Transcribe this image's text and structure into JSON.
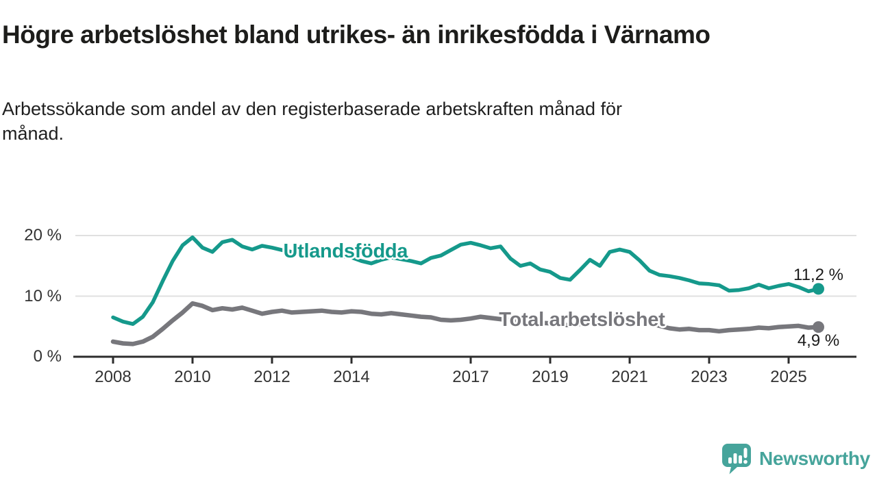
{
  "page": {
    "title": "Högre arbetslöshet bland utrikes- än inrikesfödda i Värnamo",
    "subtitle": "Arbetssökande som andel av den registerbaserade arbetskraften månad för månad."
  },
  "colors": {
    "foreign_born_line": "#15998b",
    "total_line": "#77777c",
    "axis": "#2d2d2d",
    "grid": "#e0e0e0",
    "tick_text": "#333333",
    "title_text": "#1d1d1b",
    "value_text": "#1b1b1b",
    "brand_teal": "#46a49b"
  },
  "chart_data": {
    "type": "line",
    "title": "Högre arbetslöshet bland utrikes- än inrikesfödda i Värnamo",
    "subtitle": "Arbetssökande som andel av den registerbaserade arbetskraften månad för månad.",
    "xlabel": "",
    "ylabel": "",
    "ylim": [
      0,
      22
    ],
    "x_range": [
      2008,
      2025.75
    ],
    "grid": "horizontal",
    "legend_position": "inline-labels",
    "y_ticks": [
      {
        "value": 0,
        "label": "0 %"
      },
      {
        "value": 10,
        "label": "10 %"
      },
      {
        "value": 20,
        "label": "20 %"
      }
    ],
    "x_ticks": [
      {
        "value": 2008,
        "label": "2008"
      },
      {
        "value": 2010,
        "label": "2010"
      },
      {
        "value": 2012,
        "label": "2012"
      },
      {
        "value": 2014,
        "label": "2014"
      },
      {
        "value": 2017,
        "label": "2017"
      },
      {
        "value": 2019,
        "label": "2019"
      },
      {
        "value": 2021,
        "label": "2021"
      },
      {
        "value": 2023,
        "label": "2023"
      },
      {
        "value": 2025,
        "label": "2025"
      }
    ],
    "x_unit": "decimal year (quarterly estimates read from plot)",
    "x": [
      2008,
      2008.25,
      2008.5,
      2008.75,
      2009,
      2009.25,
      2009.5,
      2009.75,
      2010,
      2010.25,
      2010.5,
      2010.75,
      2011,
      2011.25,
      2011.5,
      2011.75,
      2012,
      2012.25,
      2012.5,
      2012.75,
      2013,
      2013.25,
      2013.5,
      2013.75,
      2014,
      2014.25,
      2014.5,
      2014.75,
      2015,
      2015.25,
      2015.5,
      2015.75,
      2016,
      2016.25,
      2016.5,
      2016.75,
      2017,
      2017.25,
      2017.5,
      2017.75,
      2018,
      2018.25,
      2018.5,
      2018.75,
      2019,
      2019.25,
      2019.5,
      2019.75,
      2020,
      2020.25,
      2020.5,
      2020.75,
      2021,
      2021.25,
      2021.5,
      2021.75,
      2022,
      2022.25,
      2022.5,
      2022.75,
      2023,
      2023.25,
      2023.5,
      2023.75,
      2024,
      2024.25,
      2024.5,
      2024.75,
      2025,
      2025.25,
      2025.5,
      2025.75
    ],
    "series": [
      {
        "name": "Utlandsfödda",
        "color": "#15998b",
        "end_label": "11,2 %",
        "end_label_side": "above",
        "label_anchor": {
          "x": 2013.85,
          "y": 17.4
        },
        "values": [
          6.5,
          5.8,
          5.4,
          6.6,
          9.0,
          12.5,
          15.8,
          18.4,
          19.7,
          18.0,
          17.3,
          18.9,
          19.3,
          18.2,
          17.7,
          18.3,
          18.0,
          17.6,
          17.3,
          17.6,
          17.4,
          17.1,
          16.8,
          16.6,
          16.4,
          15.8,
          15.4,
          16.0,
          16.4,
          16.1,
          15.8,
          15.4,
          16.3,
          16.7,
          17.6,
          18.5,
          18.8,
          18.4,
          17.9,
          18.2,
          16.2,
          15.0,
          15.4,
          14.4,
          14.0,
          13.0,
          12.7,
          14.3,
          16.0,
          15.0,
          17.3,
          17.7,
          17.3,
          15.9,
          14.2,
          13.5,
          13.3,
          13.0,
          12.6,
          12.1,
          12.0,
          11.8,
          10.9,
          11.0,
          11.3,
          11.9,
          11.3,
          11.7,
          12.0,
          11.5,
          10.8,
          11.2
        ]
      },
      {
        "name": "Total arbetslöshet",
        "color": "#77777c",
        "end_label": "4,9 %",
        "end_label_side": "below",
        "label_anchor": {
          "x": 2019.8,
          "y": 6.1
        },
        "values": [
          2.5,
          2.2,
          2.1,
          2.5,
          3.3,
          4.6,
          6.0,
          7.3,
          8.8,
          8.4,
          7.7,
          8.0,
          7.8,
          8.1,
          7.6,
          7.1,
          7.4,
          7.6,
          7.3,
          7.4,
          7.5,
          7.6,
          7.4,
          7.3,
          7.5,
          7.4,
          7.1,
          7.0,
          7.2,
          7.0,
          6.8,
          6.6,
          6.5,
          6.1,
          6.0,
          6.1,
          6.3,
          6.6,
          6.4,
          6.2,
          6.0,
          5.7,
          5.8,
          5.6,
          5.5,
          5.3,
          5.2,
          5.4,
          5.8,
          6.3,
          6.6,
          6.5,
          6.3,
          6.0,
          5.6,
          5.1,
          4.7,
          4.5,
          4.6,
          4.4,
          4.4,
          4.2,
          4.4,
          4.5,
          4.6,
          4.8,
          4.7,
          4.9,
          5.0,
          5.1,
          4.8,
          4.9
        ]
      }
    ]
  },
  "footer": {
    "brand": "Newsworthy"
  }
}
